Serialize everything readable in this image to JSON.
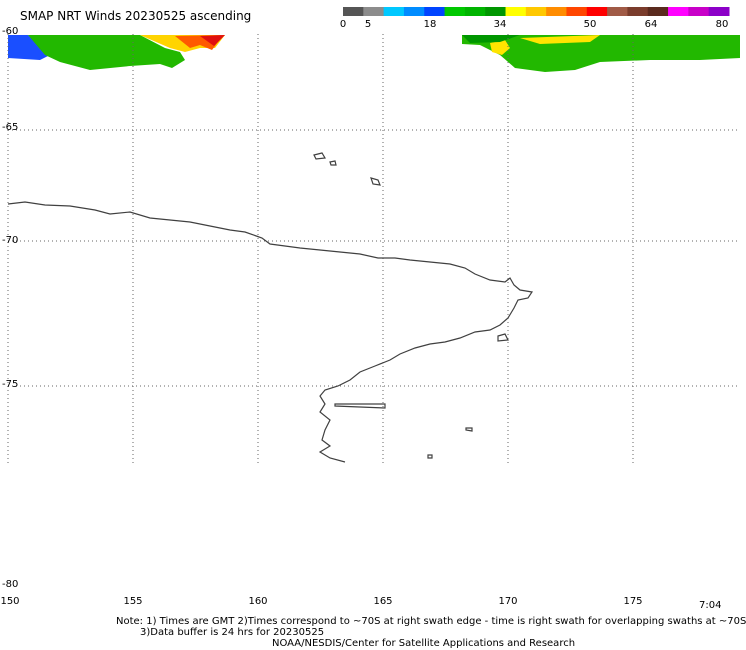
{
  "title": "SMAP NRT Winds 20230525 ascending",
  "colorbar": {
    "labels": [
      "0",
      "5",
      "18",
      "34",
      "50",
      "64",
      "80"
    ],
    "segments": [
      "#555555",
      "#8c8c8c",
      "#00c8ff",
      "#008cff",
      "#0044ff",
      "#00c800",
      "#00b400",
      "#009600",
      "#ffff00",
      "#ffc800",
      "#ff8c00",
      "#ff4600",
      "#ff0000",
      "#a05a46",
      "#7a3c2c",
      "#5a2a1e",
      "#ff00ff",
      "#c800c8",
      "#8c00c8"
    ]
  },
  "map": {
    "lat_ticks": [
      "-60",
      "-65",
      "-70",
      "-75",
      "-80"
    ],
    "lon_ticks": [
      "150",
      "155",
      "160",
      "165",
      "170",
      "175"
    ],
    "time_label": "7:04"
  },
  "notes": {
    "line1": "Note: 1) Times are GMT 2)Times correspond to ~70S at right swath edge - time is right swath for overlapping swaths at ~70S",
    "line2": "3)Data buffer is 24 hrs for 20230525",
    "line3": "NOAA/NESDIS/Center for Satellite Applications and Research"
  }
}
